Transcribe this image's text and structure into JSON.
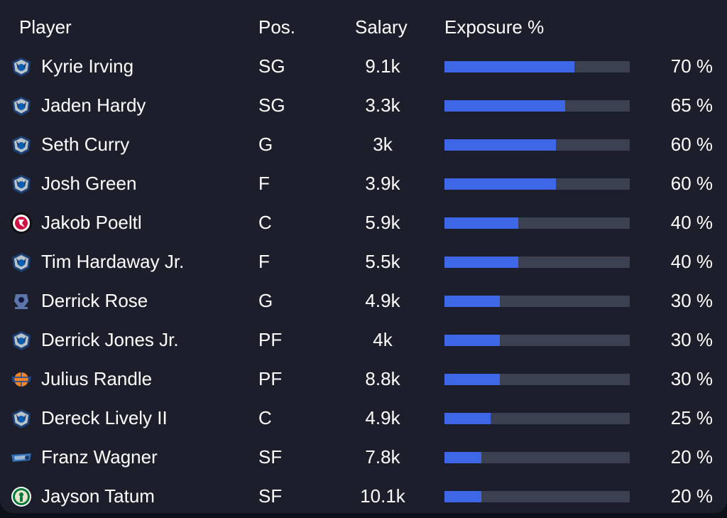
{
  "header": {
    "player": "Player",
    "pos": "Pos.",
    "salary": "Salary",
    "exposure": "Exposure %"
  },
  "colors": {
    "panel_background": "#1c1e2c",
    "bar_track": "#3b4150",
    "bar_fill": "#3d67e6",
    "text": "#ffffff"
  },
  "rows": [
    {
      "logo": "mavericks-logo-icon",
      "name": "Kyrie Irving",
      "pos": "SG",
      "salary": "9.1k",
      "exposure": 70,
      "exposure_text": "70 %"
    },
    {
      "logo": "mavericks-logo-icon",
      "name": "Jaden Hardy",
      "pos": "SG",
      "salary": "3.3k",
      "exposure": 65,
      "exposure_text": "65 %"
    },
    {
      "logo": "mavericks-logo-icon",
      "name": "Seth Curry",
      "pos": "G",
      "salary": "3k",
      "exposure": 60,
      "exposure_text": "60 %"
    },
    {
      "logo": "mavericks-logo-icon",
      "name": "Josh Green",
      "pos": "F",
      "salary": "3.9k",
      "exposure": 60,
      "exposure_text": "60 %"
    },
    {
      "logo": "raptors-logo-icon",
      "name": "Jakob Poeltl",
      "pos": "C",
      "salary": "5.9k",
      "exposure": 40,
      "exposure_text": "40 %"
    },
    {
      "logo": "mavericks-logo-icon",
      "name": "Tim Hardaway Jr.",
      "pos": "F",
      "salary": "5.5k",
      "exposure": 40,
      "exposure_text": "40 %"
    },
    {
      "logo": "grizzlies-logo-icon",
      "name": "Derrick Rose",
      "pos": "G",
      "salary": "4.9k",
      "exposure": 30,
      "exposure_text": "30 %"
    },
    {
      "logo": "mavericks-logo-icon",
      "name": "Derrick Jones Jr.",
      "pos": "PF",
      "salary": "4k",
      "exposure": 30,
      "exposure_text": "30 %"
    },
    {
      "logo": "knicks-logo-icon",
      "name": "Julius Randle",
      "pos": "PF",
      "salary": "8.8k",
      "exposure": 30,
      "exposure_text": "30 %"
    },
    {
      "logo": "mavericks-logo-icon",
      "name": "Dereck Lively II",
      "pos": "C",
      "salary": "4.9k",
      "exposure": 25,
      "exposure_text": "25 %"
    },
    {
      "logo": "magic-logo-icon",
      "name": "Franz Wagner",
      "pos": "SF",
      "salary": "7.8k",
      "exposure": 20,
      "exposure_text": "20 %"
    },
    {
      "logo": "celtics-logo-icon",
      "name": "Jayson Tatum",
      "pos": "SF",
      "salary": "10.1k",
      "exposure": 20,
      "exposure_text": "20 %"
    }
  ]
}
